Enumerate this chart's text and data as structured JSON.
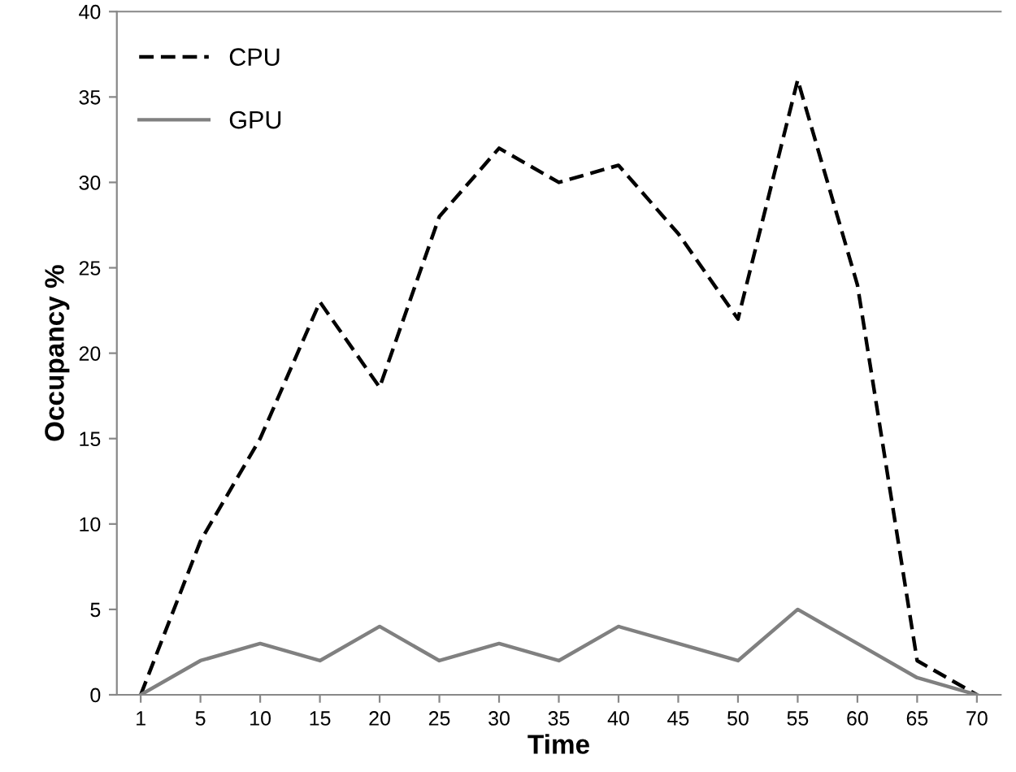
{
  "chart_data": {
    "type": "line",
    "xlabel": "Time",
    "ylabel": "Occupancy %",
    "categories": [
      "1",
      "5",
      "10",
      "15",
      "20",
      "25",
      "30",
      "35",
      "40",
      "45",
      "50",
      "55",
      "60",
      "65",
      "70"
    ],
    "series": [
      {
        "name": "CPU",
        "color": "#000000",
        "line_style": "dashed",
        "values": [
          0,
          9,
          15,
          23,
          18,
          28,
          32,
          30,
          31,
          27,
          22,
          36,
          24,
          2,
          0
        ]
      },
      {
        "name": "GPU",
        "color": "#808080",
        "line_style": "solid",
        "values": [
          0,
          2,
          3,
          2,
          4,
          2,
          3,
          2,
          4,
          3,
          2,
          5,
          3,
          1,
          0
        ]
      }
    ],
    "ylim": [
      0,
      40
    ],
    "yticks": [
      0,
      5,
      10,
      15,
      20,
      25,
      30,
      35,
      40
    ],
    "grid": false,
    "legend": "top left",
    "marker": "none"
  }
}
